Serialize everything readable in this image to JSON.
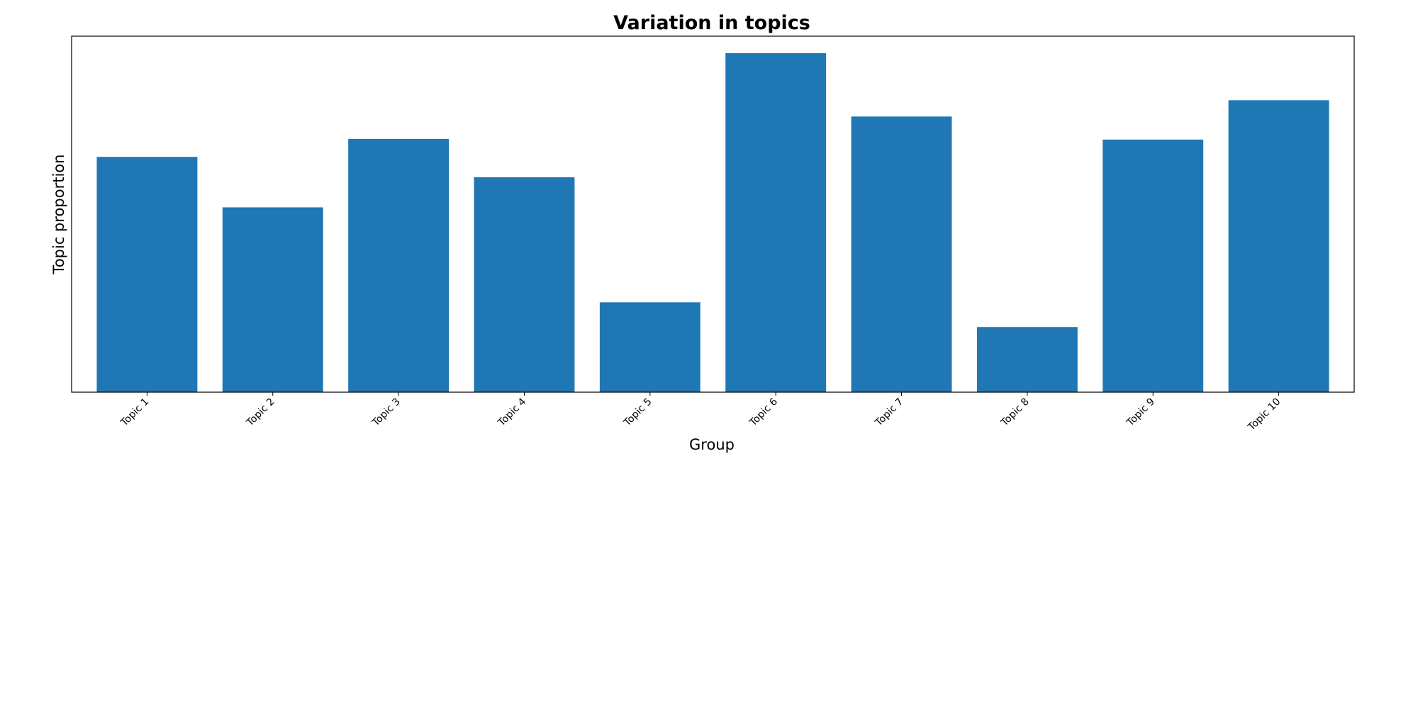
{
  "chart_data": {
    "type": "bar",
    "title": "Variation in topics",
    "xlabel": "Group",
    "ylabel": "Topic proportion",
    "categories": [
      "Topic 1",
      "Topic 2",
      "Topic 3",
      "Topic 4",
      "Topic 5",
      "Topic 6",
      "Topic 7",
      "Topic 8",
      "Topic 9",
      "Topic 10"
    ],
    "values": [
      0.694,
      0.545,
      0.747,
      0.634,
      0.265,
      1.0,
      0.813,
      0.192,
      0.745,
      0.861
    ],
    "ylim": [
      0,
      1.05
    ],
    "bar_color": "#1f77b4",
    "grid": false,
    "y_tick_labels_visible": false
  }
}
